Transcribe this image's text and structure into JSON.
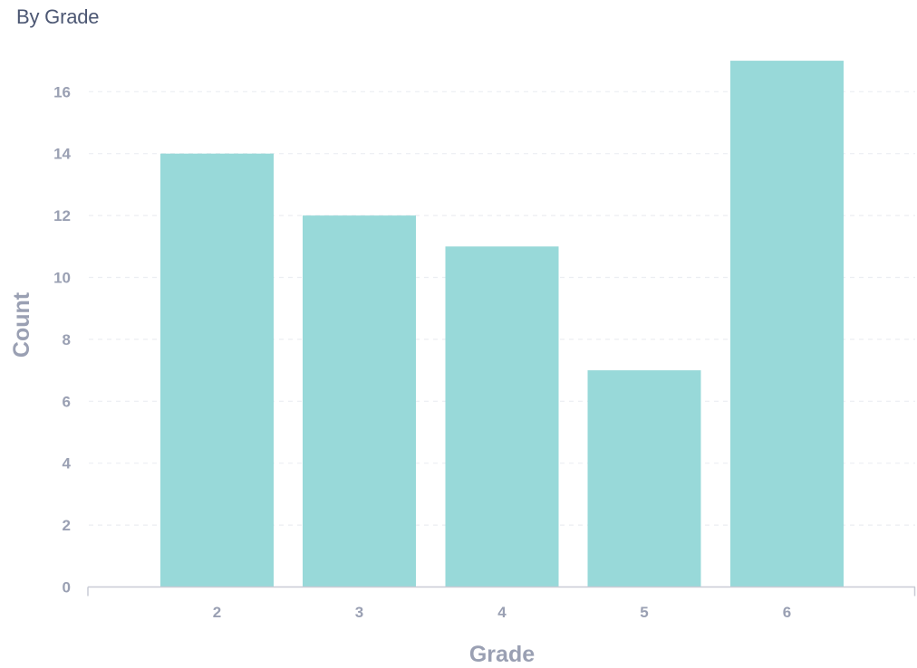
{
  "chart_data": {
    "type": "bar",
    "title": "By Grade",
    "xlabel": "Grade",
    "ylabel": "Count",
    "categories": [
      "2",
      "3",
      "4",
      "5",
      "6"
    ],
    "values": [
      14,
      12,
      11,
      7,
      17
    ],
    "ylim": [
      0,
      17
    ],
    "yticks": [
      0,
      2,
      4,
      6,
      8,
      10,
      12,
      14,
      16
    ],
    "grid": true,
    "grid_style": "dashed",
    "legend": "none"
  },
  "colors": {
    "bar": "#98d9d9",
    "tick_text": "#9aa0b3",
    "title_text": "#4c5773",
    "gridline": "#eceef2",
    "axis_line": "#c9cbd5"
  }
}
